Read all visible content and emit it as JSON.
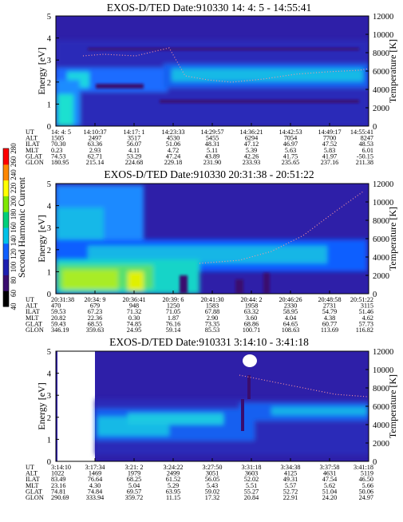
{
  "colors": {
    "background": "#2e1fa8",
    "scale": [
      "#000000",
      "#3a0d6e",
      "#1d1fb0",
      "#0f5fff",
      "#00c2e8",
      "#00d07a",
      "#7fe800",
      "#ffff00",
      "#ff8800",
      "#ff0000"
    ],
    "temperature_dots": "#ff9aa0",
    "frame": "#000000"
  },
  "colorbar": {
    "label": "Second Harmonic Current",
    "ticks": [
      "40",
      "60",
      "80",
      "100",
      "120",
      "140",
      "160",
      "180",
      "200",
      "220",
      "240",
      "260",
      "280"
    ]
  },
  "chart_data": [
    {
      "type": "heatmap",
      "title": "EXOS-D/TED   Date:910330  14: 4: 5 - 14:55:41",
      "ylabel": "Energy [eV]",
      "ylabel_right": "Temperature [K]",
      "ylim": [
        0,
        5
      ],
      "ylim_right": [
        0,
        12000
      ],
      "yticks": [
        "0",
        "1",
        "2",
        "3",
        "4",
        "5"
      ],
      "yticks_right": [
        "0",
        "2000",
        "4000",
        "6000",
        "8000",
        "10000",
        "12000"
      ],
      "ephemeris": {
        "labels": [
          "UT",
          "ALT",
          "ILAT",
          "MLT",
          "GLAT",
          "GLON"
        ],
        "columns": [
          [
            "14: 4: 5",
            "1505",
            "70.30",
            "0.23",
            "74.53",
            "180.95"
          ],
          [
            "14:10:37",
            "2497",
            "63.36",
            "2.93",
            "62.71",
            "215.14"
          ],
          [
            "14:17: 1",
            "3517",
            "56.07",
            "4.11",
            "53.29",
            "224.68"
          ],
          [
            "14:23:33",
            "4530",
            "51.06",
            "4.72",
            "47.24",
            "229.18"
          ],
          [
            "14:29:57",
            "5455",
            "48.31",
            "5.11",
            "43.89",
            "231.90"
          ],
          [
            "14:36:21",
            "6294",
            "47.12",
            "5.39",
            "42.26",
            "233.93"
          ],
          [
            "14:42:53",
            "7054",
            "46.97",
            "5.63",
            "41.75",
            "235.65"
          ],
          [
            "14:49:17",
            "7700",
            "47.52",
            "5.83",
            "41.97",
            "237.16"
          ],
          [
            "14:55:41",
            "8247",
            "48.53",
            "6.01",
            "-50.15",
            "211.38"
          ]
        ]
      }
    },
    {
      "type": "heatmap",
      "title": "EXOS-D/TED   Date:910330  20:31:38 - 20:51:22",
      "ylabel": "Energy [eV]",
      "ylabel_right": "Temperature [K]",
      "ylim": [
        0,
        5
      ],
      "ylim_right": [
        0,
        12000
      ],
      "yticks": [
        "0",
        "1",
        "2",
        "3",
        "4",
        "5"
      ],
      "yticks_right": [
        "0",
        "2000",
        "4000",
        "6000",
        "8000",
        "10000",
        "12000"
      ],
      "ephemeris": {
        "labels": [
          "UT",
          "ALT",
          "ILAT",
          "MLT",
          "GLAT",
          "GLON"
        ],
        "columns": [
          [
            "20:31:38",
            "470",
            "59.53",
            "20.82",
            "59.43",
            "346.19"
          ],
          [
            "20:34: 9",
            "679",
            "67.23",
            "22.36",
            "68.55",
            "359.63"
          ],
          [
            "20:36:41",
            "948",
            "71.32",
            "0.30",
            "74.85",
            "24.95"
          ],
          [
            "20:39: 6",
            "1250",
            "71.05",
            "1.87",
            "76.16",
            "59.14"
          ],
          [
            "20:41:30",
            "1583",
            "67.88",
            "2.90",
            "73.35",
            "85.53"
          ],
          [
            "20:44: 2",
            "1958",
            "63.32",
            "3.60",
            "68.86",
            "100.71"
          ],
          [
            "20:46:26",
            "2330",
            "58.95",
            "4.04",
            "64.65",
            "108.63"
          ],
          [
            "20:48:58",
            "2731",
            "54.79",
            "4.38",
            "60.77",
            "113.69"
          ],
          [
            "20:51:22",
            "3115",
            "51.46",
            "4.62",
            "57.73",
            "116.82"
          ]
        ]
      }
    },
    {
      "type": "heatmap",
      "title": "EXOS-D/TED   Date:910331  3:14:10 - 3:41:18",
      "ylabel": "Energy [eV]",
      "ylabel_right": "Temperature [K]",
      "ylim": [
        0,
        5
      ],
      "ylim_right": [
        0,
        12000
      ],
      "yticks": [
        "0",
        "1",
        "2",
        "3",
        "4",
        "5"
      ],
      "yticks_right": [
        "0",
        "2000",
        "4000",
        "6000",
        "8000",
        "10000",
        "12000"
      ],
      "ephemeris": {
        "labels": [
          "UT",
          "ALT",
          "ILAT",
          "MLT",
          "GLAT",
          "GLON"
        ],
        "columns": [
          [
            "3:14:10",
            "1022",
            "83.49",
            "23.16",
            "74.81",
            "290.69"
          ],
          [
            "3:17:34",
            "1469",
            "76.64",
            "4.30",
            "74.84",
            "333.94"
          ],
          [
            "3:21: 2",
            "1979",
            "68.25",
            "5.04",
            "69.57",
            "359.72"
          ],
          [
            "3:24:22",
            "2499",
            "61.52",
            "5.29",
            "63.95",
            "11.15"
          ],
          [
            "3:27:50",
            "3051",
            "56.05",
            "5.43",
            "59.02",
            "17.32"
          ],
          [
            "3:31:18",
            "3603",
            "52.02",
            "5.51",
            "55.27",
            "20.84"
          ],
          [
            "3:34:38",
            "4125",
            "49.31",
            "5.57",
            "52.72",
            "22.91"
          ],
          [
            "3:37:58",
            "4631",
            "47.54",
            "5.62",
            "51.04",
            "24.20"
          ],
          [
            "3:41:18",
            "5119",
            "46.50",
            "5.66",
            "50.06",
            "24.97"
          ]
        ]
      }
    }
  ]
}
